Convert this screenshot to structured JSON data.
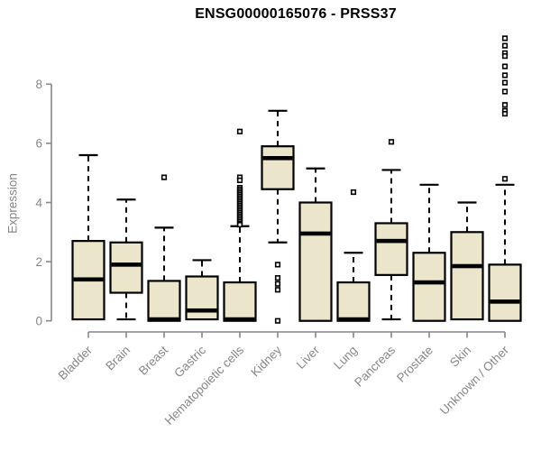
{
  "chart_data": {
    "type": "boxplot",
    "title": "ENSG00000165076 - PRSS37",
    "ylabel": "Expression",
    "xlabel": "",
    "yticks": [
      0,
      2,
      4,
      6,
      8
    ],
    "ylim": [
      -0.4,
      9.9
    ],
    "grid": false,
    "legend": false,
    "colors": {
      "box_fill": "#EBE6CB",
      "box_border": "#000000",
      "median": "#000000",
      "whisker": "#000000",
      "outlier_fill": "#ffffff",
      "outlier_border": "#000000",
      "axis": "#878787",
      "tick_label": "#878787",
      "title": "#000000"
    },
    "categories": [
      "Bladder",
      "Brain",
      "Breast",
      "Gastric",
      "Hematopoietic cells",
      "Kidney",
      "Liver",
      "Lung",
      "Pancreas",
      "Prostate",
      "Skin",
      "Unknown / Other"
    ],
    "series": [
      {
        "category": "Bladder",
        "whisker_low": 0.05,
        "q1": 0.05,
        "median": 1.4,
        "q3": 2.7,
        "whisker_high": 5.6,
        "outliers": []
      },
      {
        "category": "Brain",
        "whisker_low": 0.05,
        "q1": 0.95,
        "median": 1.9,
        "q3": 2.65,
        "whisker_high": 4.1,
        "outliers": []
      },
      {
        "category": "Breast",
        "whisker_low": 0.0,
        "q1": 0.0,
        "median": 0.05,
        "q3": 1.35,
        "whisker_high": 3.15,
        "outliers": [
          4.85
        ]
      },
      {
        "category": "Gastric",
        "whisker_low": 0.05,
        "q1": 0.05,
        "median": 0.35,
        "q3": 1.5,
        "whisker_high": 2.05,
        "outliers": []
      },
      {
        "category": "Hematopoietic cells",
        "whisker_low": 0.0,
        "q1": 0.0,
        "median": 0.05,
        "q3": 1.3,
        "whisker_high": 3.2,
        "outliers": [
          6.4,
          4.85,
          4.75,
          4.5,
          4.44,
          4.38,
          4.32,
          4.26,
          4.2,
          4.14,
          4.08,
          4.02,
          3.96,
          3.9,
          3.84,
          3.78,
          3.72,
          3.66,
          3.6,
          3.54,
          3.48,
          3.42,
          3.36,
          3.3,
          3.25
        ]
      },
      {
        "category": "Kidney",
        "whisker_low": 2.65,
        "q1": 4.45,
        "median": 5.5,
        "q3": 5.9,
        "whisker_high": 7.1,
        "outliers": [
          1.9,
          1.45,
          1.25,
          1.05,
          0.0
        ]
      },
      {
        "category": "Liver",
        "whisker_low": 0.0,
        "q1": 0.0,
        "median": 2.95,
        "q3": 4.0,
        "whisker_high": 5.15,
        "outliers": []
      },
      {
        "category": "Lung",
        "whisker_low": 0.0,
        "q1": 0.0,
        "median": 0.05,
        "q3": 1.3,
        "whisker_high": 2.3,
        "outliers": [
          4.35
        ]
      },
      {
        "category": "Pancreas",
        "whisker_low": 0.05,
        "q1": 1.55,
        "median": 2.7,
        "q3": 3.3,
        "whisker_high": 5.1,
        "outliers": [
          6.05
        ]
      },
      {
        "category": "Prostate",
        "whisker_low": 0.0,
        "q1": 0.0,
        "median": 1.3,
        "q3": 2.3,
        "whisker_high": 4.6,
        "outliers": []
      },
      {
        "category": "Skin",
        "whisker_low": 0.05,
        "q1": 0.05,
        "median": 1.85,
        "q3": 3.0,
        "whisker_high": 4.0,
        "outliers": []
      },
      {
        "category": "Unknown / Other",
        "whisker_low": 0.0,
        "q1": 0.0,
        "median": 0.65,
        "q3": 1.9,
        "whisker_high": 4.6,
        "outliers": [
          9.55,
          9.3,
          9.05,
          8.95,
          8.6,
          8.3,
          8.05,
          7.75,
          7.3,
          7.1,
          7.0,
          4.8
        ]
      }
    ]
  }
}
